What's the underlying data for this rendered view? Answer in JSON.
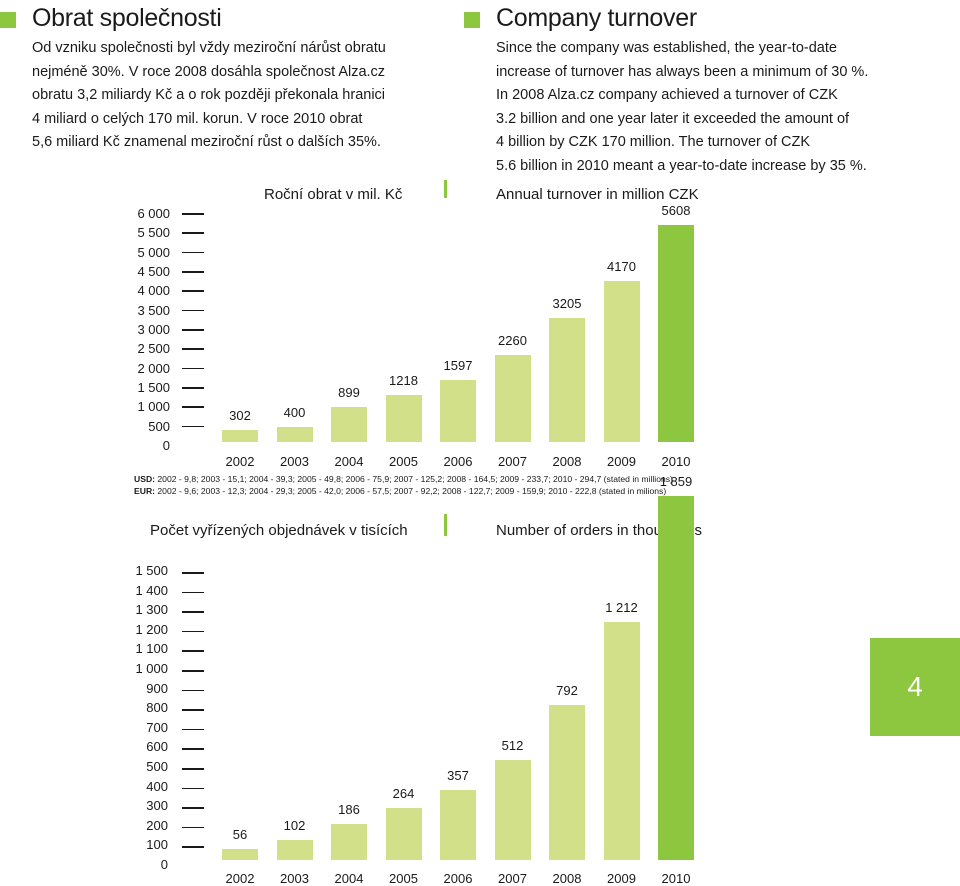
{
  "cz": {
    "heading": "Obrat společnosti",
    "lines": [
      "Od vzniku společnosti byl vždy meziroční nárůst obratu",
      "nejméně 30%. V roce 2008 dosáhla společnost Alza.cz",
      "obratu 3,2 miliardy Kč a o rok později překonala hranici",
      "4 miliard o celých 170 mil. korun. V roce 2010 obrat",
      "5,6 miliard Kč znamenal meziroční růst o dalších 35%."
    ]
  },
  "en": {
    "heading": "Company turnover",
    "lines": [
      "Since the company was established, the year-to-date",
      "increase of turnover has always been a minimum of 30 %.",
      "In 2008 Alza.cz company achieved a turnover of CZK",
      "3.2 billion and one year later it exceeded the amount of",
      "4 billion by CZK 170 million. The turnover of CZK",
      "5.6 billion in 2010 meant a year-to-date increase by 35 %."
    ]
  },
  "notes": {
    "usd_label": "USD:",
    "usd_text": " 2002 - 9,8; 2003 - 15,1; 2004 - 39,3; 2005 - 49,8; 2006 - 75,9; 2007 - 125,2; 2008 - 164,5; 2009 - 233,7; 2010 - 294,7 (stated in millions)",
    "eur_label": "EUR:",
    "eur_text": " 2002 - 9,6; 2003 - 12,3; 2004 - 29,3; 2005 - 42,0; 2006 - 57,5; 2007 - 92,2; 2008 - 122,7; 2009 - 159,9; 2010 - 222,8 (stated in milions)"
  },
  "page_number": "4",
  "colors": {
    "accent": "#8dc63f",
    "bar_light": "#d2e08a"
  },
  "chart_data": [
    {
      "type": "bar",
      "title": "Roční obrat v mil. Kč",
      "title_en": "Annual turnover in million CZK",
      "categories": [
        "2002",
        "2003",
        "2004",
        "2005",
        "2006",
        "2007",
        "2008",
        "2009",
        "2010"
      ],
      "values": [
        302,
        400,
        899,
        1218,
        1597,
        2260,
        3205,
        4170,
        5608
      ],
      "value_labels": [
        "302",
        "400",
        "899",
        "1218",
        "1597",
        "2260",
        "3205",
        "4170",
        "5608"
      ],
      "yticks": [
        "0",
        "500",
        "1 000",
        "1 500",
        "2 000",
        "2 500",
        "3 000",
        "3 500",
        "4 000",
        "4 500",
        "5 000",
        "5 500",
        "6 000"
      ],
      "ylim": [
        0,
        6000
      ],
      "highlight_last": true
    },
    {
      "type": "bar",
      "title": "Počet vyřízených objednávek v tisících",
      "title_en": "Number of orders in thousands",
      "categories": [
        "2002",
        "2003",
        "2004",
        "2005",
        "2006",
        "2007",
        "2008",
        "2009",
        "2010"
      ],
      "values": [
        56,
        102,
        186,
        264,
        357,
        512,
        792,
        1212,
        1859
      ],
      "value_labels": [
        "56",
        "102",
        "186",
        "264",
        "357",
        "512",
        "792",
        "1 212",
        "1 859"
      ],
      "yticks": [
        "0",
        "100",
        "200",
        "300",
        "400",
        "500",
        "600",
        "700",
        "800",
        "900",
        "1 000",
        "1 100",
        "1 200",
        "1 300",
        "1 400",
        "1 500"
      ],
      "ylim": [
        0,
        1500
      ],
      "highlight_last": true
    }
  ]
}
